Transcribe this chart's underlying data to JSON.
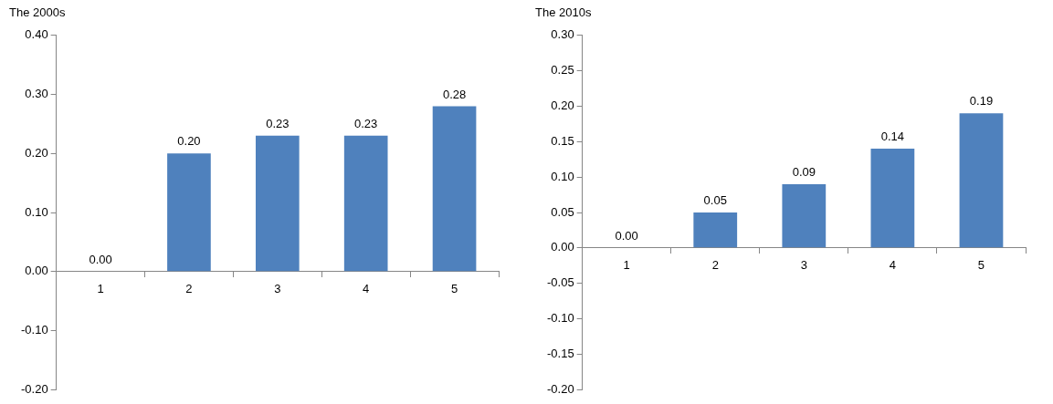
{
  "chart_data": [
    {
      "type": "bar",
      "title": "The 2000s",
      "categories": [
        "1",
        "2",
        "3",
        "4",
        "5"
      ],
      "values": [
        0.0,
        0.2,
        0.23,
        0.23,
        0.28
      ],
      "value_labels": [
        "0.00",
        "0.20",
        "0.23",
        "0.23",
        "0.28"
      ],
      "color": "#4f81bd",
      "ylim": [
        -0.2,
        0.4
      ],
      "yticks": [
        {
          "value": -0.2,
          "label": "-0.20"
        },
        {
          "value": -0.1,
          "label": "-0.10"
        },
        {
          "value": 0,
          "label": "0.00"
        },
        {
          "value": 0.1,
          "label": "0.10"
        },
        {
          "value": 0.2,
          "label": "0.20"
        },
        {
          "value": 0.3,
          "label": "0.30"
        },
        {
          "value": 0.4,
          "label": "0.40"
        }
      ],
      "grid": false,
      "legend": false
    },
    {
      "type": "bar",
      "title": "The 2010s",
      "categories": [
        "1",
        "2",
        "3",
        "4",
        "5"
      ],
      "values": [
        0.0,
        0.05,
        0.09,
        0.14,
        0.19
      ],
      "value_labels": [
        "0.00",
        "0.05",
        "0.09",
        "0.14",
        "0.19"
      ],
      "color": "#4f81bd",
      "ylim": [
        -0.2,
        0.3
      ],
      "yticks": [
        {
          "value": -0.2,
          "label": "-0.20"
        },
        {
          "value": -0.15,
          "label": "-0.15"
        },
        {
          "value": -0.1,
          "label": "-0.10"
        },
        {
          "value": -0.05,
          "label": "-0.05"
        },
        {
          "value": 0,
          "label": "0.00"
        },
        {
          "value": 0.05,
          "label": "0.05"
        },
        {
          "value": 0.1,
          "label": "0.10"
        },
        {
          "value": 0.15,
          "label": "0.15"
        },
        {
          "value": 0.2,
          "label": "0.20"
        },
        {
          "value": 0.25,
          "label": "0.25"
        },
        {
          "value": 0.3,
          "label": "0.30"
        }
      ],
      "grid": false,
      "legend": false
    }
  ]
}
